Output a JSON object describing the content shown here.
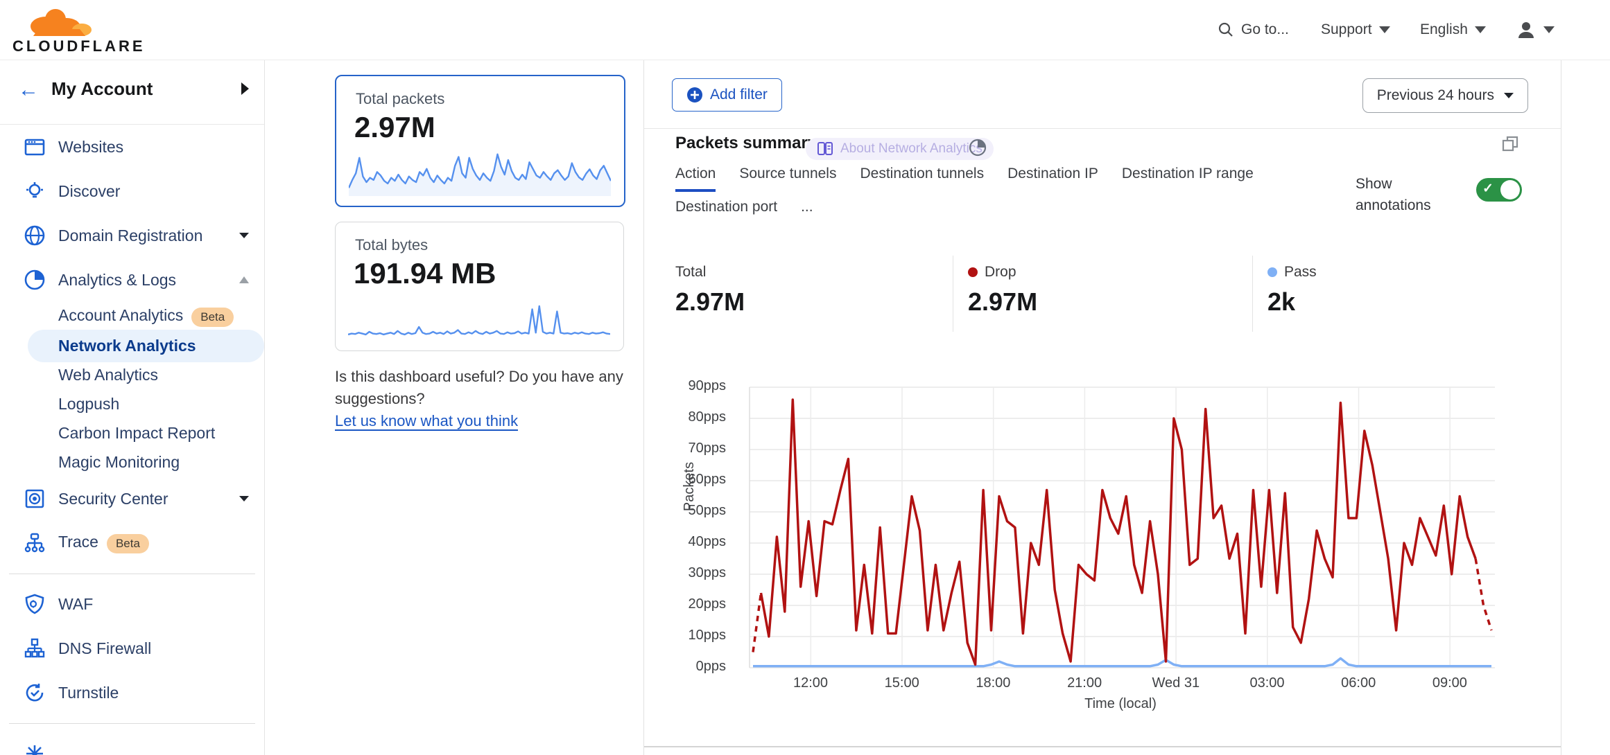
{
  "brand": {
    "name": "CLOUDFLARE"
  },
  "header": {
    "goto_label": "Go to...",
    "support_label": "Support",
    "language_label": "English"
  },
  "sidebar": {
    "account_label": "My Account",
    "items": [
      {
        "type": "item",
        "label": "Websites",
        "icon": "browser-icon"
      },
      {
        "type": "item",
        "label": "Discover",
        "icon": "lightbulb-icon"
      },
      {
        "type": "item",
        "label": "Domain Registration",
        "icon": "globe-icon",
        "caret": "down"
      },
      {
        "type": "item",
        "label": "Analytics & Logs",
        "icon": "pie-chart-icon",
        "caret": "up"
      },
      {
        "type": "sub",
        "label": "Account Analytics",
        "badge": "Beta"
      },
      {
        "type": "sub",
        "label": "Network Analytics",
        "selected": true
      },
      {
        "type": "sub",
        "label": "Web Analytics"
      },
      {
        "type": "sub",
        "label": "Logpush"
      },
      {
        "type": "sub",
        "label": "Carbon Impact Report"
      },
      {
        "type": "sub",
        "label": "Magic Monitoring"
      },
      {
        "type": "item",
        "label": "Security Center",
        "icon": "safe-icon",
        "caret": "down"
      },
      {
        "type": "item",
        "label": "Trace",
        "icon": "trace-icon",
        "badge": "Beta"
      },
      {
        "type": "divider"
      },
      {
        "type": "item",
        "label": "WAF",
        "icon": "shield-gear-icon"
      },
      {
        "type": "item",
        "label": "DNS Firewall",
        "icon": "network-nodes-icon"
      },
      {
        "type": "item",
        "label": "Turnstile",
        "icon": "rotate-check-icon"
      },
      {
        "type": "divider"
      },
      {
        "type": "item",
        "label": "",
        "icon": "starburst-icon"
      }
    ]
  },
  "summary_cards": [
    {
      "label": "Total packets",
      "value": "2.97M",
      "selected": true,
      "spark": [
        12,
        30,
        45,
        80,
        38,
        25,
        35,
        30,
        48,
        40,
        28,
        22,
        35,
        28,
        42,
        30,
        22,
        38,
        30,
        25,
        48,
        40,
        55,
        35,
        25,
        40,
        30,
        22,
        35,
        28,
        62,
        82,
        45,
        35,
        80,
        55,
        40,
        30,
        45,
        35,
        28,
        50,
        88,
        60,
        42,
        75,
        50,
        35,
        30,
        42,
        32,
        70,
        55,
        40,
        35,
        48,
        38,
        30,
        45,
        52,
        40,
        30,
        38,
        68,
        48,
        36,
        30,
        44,
        54,
        40,
        32,
        52,
        62,
        45,
        28
      ]
    },
    {
      "label": "Total bytes",
      "value": "191.94 MB",
      "selected": false,
      "spark": [
        8,
        10,
        9,
        12,
        10,
        8,
        14,
        10,
        9,
        11,
        8,
        10,
        12,
        9,
        16,
        10,
        8,
        12,
        9,
        11,
        25,
        12,
        9,
        10,
        14,
        10,
        12,
        9,
        15,
        10,
        12,
        18,
        10,
        9,
        13,
        10,
        16,
        11,
        9,
        14,
        10,
        12,
        16,
        10,
        9,
        13,
        10,
        11,
        15,
        10,
        12,
        10,
        65,
        12,
        72,
        14,
        10,
        12,
        10,
        60,
        12,
        10,
        11,
        9,
        12,
        10,
        13,
        10,
        9,
        12,
        10,
        11,
        13,
        10,
        9
      ]
    }
  ],
  "feedback": {
    "question": "Is this dashboard useful? Do you have any suggestions?",
    "link_label": "Let us know what you think"
  },
  "toolbar": {
    "add_filter_label": "Add filter",
    "time_range_label": "Previous 24 hours"
  },
  "panel": {
    "title": "Packets summary",
    "badge_label": "About Network Analytics",
    "tabs": [
      {
        "label": "Action",
        "active": true
      },
      {
        "label": "Source tunnels"
      },
      {
        "label": "Destination tunnels"
      },
      {
        "label": "Destination IP"
      },
      {
        "label": "Destination IP range"
      },
      {
        "label": "Destination port"
      },
      {
        "label": "..."
      }
    ],
    "show_annotations_label": "Show annotations",
    "annotations_on": true,
    "stats": [
      {
        "label": "Total",
        "value": "2.97M",
        "dot": null
      },
      {
        "label": "Drop",
        "value": "2.97M",
        "dot": "#b11212"
      },
      {
        "label": "Pass",
        "value": "2k",
        "dot": "#7fb0f5"
      }
    ]
  },
  "chart_data": {
    "type": "line",
    "title": "Packets summary",
    "xlabel": "Time (local)",
    "ylabel": "Packets",
    "ylim": [
      0,
      90
    ],
    "grid": true,
    "y_tick_labels": [
      "0pps",
      "10pps",
      "20pps",
      "30pps",
      "40pps",
      "50pps",
      "60pps",
      "70pps",
      "80pps",
      "90pps"
    ],
    "x_tick_labels": [
      "12:00",
      "15:00",
      "18:00",
      "21:00",
      "Wed 31",
      "03:00",
      "06:00",
      "09:00"
    ],
    "series": [
      {
        "name": "Drop",
        "color": "#b11212",
        "style": "solid-with-dashed-ends",
        "values": [
          5,
          24,
          10,
          42,
          18,
          86,
          26,
          47,
          23,
          47,
          46,
          57,
          67,
          12,
          33,
          11,
          45,
          11,
          11,
          33,
          55,
          44,
          12,
          33,
          12,
          24,
          34,
          8,
          1,
          57,
          12,
          55,
          47,
          45,
          11,
          40,
          33,
          57,
          25,
          11,
          2,
          33,
          30,
          28,
          57,
          48,
          43,
          55,
          33,
          24,
          47,
          30,
          2,
          80,
          70,
          33,
          35,
          83,
          48,
          52,
          35,
          43,
          11,
          57,
          26,
          57,
          24,
          56,
          13,
          8,
          22,
          44,
          35,
          29,
          85,
          48,
          48,
          76,
          65,
          50,
          35,
          12,
          40,
          33,
          48,
          42,
          36,
          52,
          30,
          55,
          42,
          35,
          20,
          12
        ]
      },
      {
        "name": "Pass",
        "color": "#7fb0f5",
        "style": "solid",
        "values": [
          0.5,
          0.5,
          0.5,
          0.5,
          0.5,
          0.5,
          0.5,
          0.5,
          0.5,
          0.5,
          0.5,
          0.5,
          0.5,
          0.5,
          0.5,
          0.5,
          0.5,
          0.5,
          0.5,
          0.5,
          0.5,
          0.5,
          0.5,
          0.5,
          0.5,
          0.5,
          0.5,
          0.5,
          0.5,
          0.5,
          1,
          2,
          1,
          0.5,
          0.5,
          0.5,
          0.5,
          0.5,
          0.5,
          0.5,
          0.5,
          0.5,
          0.5,
          0.5,
          0.5,
          0.5,
          0.5,
          0.5,
          0.5,
          0.5,
          0.5,
          1,
          2.5,
          1,
          0.5,
          0.5,
          0.5,
          0.5,
          0.5,
          0.5,
          0.5,
          0.5,
          0.5,
          0.5,
          0.5,
          0.5,
          0.5,
          0.5,
          0.5,
          0.5,
          0.5,
          0.5,
          0.5,
          1,
          3,
          1,
          0.5,
          0.5,
          0.5,
          0.5,
          0.5,
          0.5,
          0.5,
          0.5,
          0.5,
          0.5,
          0.5,
          0.5,
          0.5,
          0.5,
          0.5,
          0.5,
          0.5,
          0.5
        ]
      }
    ]
  },
  "colors": {
    "accent_blue": "#2563c9",
    "link_blue": "#1a56c4",
    "nav_blue": "#1d62d3",
    "selected_pill": "#e9f2fc",
    "beta_badge_bg": "#f9cf9e",
    "toggle_green": "#2b9246",
    "drop_red": "#b11212",
    "pass_blue": "#7fb0f5",
    "spark_blue": "#5590ee",
    "badge_lavender_bg": "#f2f0fb",
    "badge_lavender_text": "#b6aee2"
  }
}
